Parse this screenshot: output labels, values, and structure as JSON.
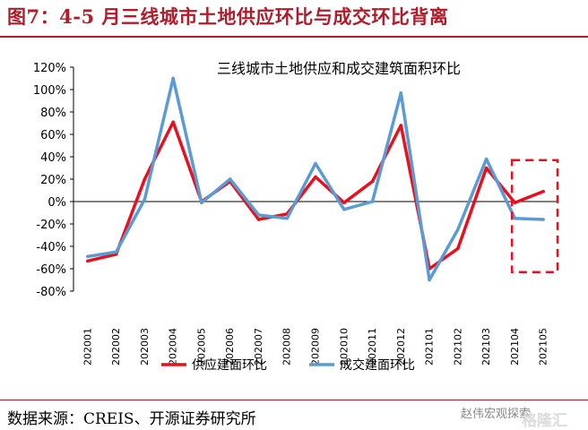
{
  "figure_title": "图7：4-5 月三线城市土地供应环比与成交环比背离",
  "source": "数据来源：CREIS、开源证券研究所",
  "watermark": "赵伟宏观探索",
  "watermark2": "格隆汇",
  "colors": {
    "supply": "#e8101e",
    "transaction": "#5b9bd5",
    "highlight_box": "#e8101e",
    "title": "#b01c2a"
  },
  "chart_data": {
    "type": "line",
    "title": "三线城市土地供应和成交建筑面积环比",
    "ylim": [
      -80,
      120
    ],
    "yticks": [
      -80,
      -60,
      -40,
      -20,
      0,
      20,
      40,
      60,
      80,
      100,
      120
    ],
    "ytick_suffix": "%",
    "categories": [
      "202001",
      "202002",
      "202003",
      "202004",
      "202005",
      "202006",
      "202007",
      "202008",
      "202009",
      "202010",
      "202011",
      "202012",
      "202101",
      "202102",
      "202103",
      "202104",
      "202105"
    ],
    "series": [
      {
        "name": "供应建面环比",
        "color": "#e8101e",
        "values": [
          -53,
          -47,
          20,
          71,
          0,
          18,
          -16,
          -11,
          22,
          -1,
          18,
          68,
          -60,
          -42,
          30,
          -1,
          9
        ]
      },
      {
        "name": "成交建面环比",
        "color": "#5b9bd5",
        "values": [
          -49,
          -45,
          2,
          110,
          -1,
          20,
          -12,
          -15,
          34,
          -7,
          0,
          97,
          -70,
          -25,
          38,
          -15,
          -16
        ]
      }
    ],
    "highlight_categories": [
      "202104",
      "202105"
    ],
    "legend_position": "bottom"
  }
}
